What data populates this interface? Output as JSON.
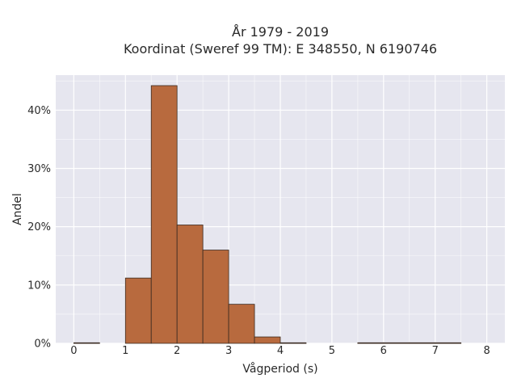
{
  "chart_data": {
    "type": "bar",
    "title": [
      "År 1979 - 2019",
      "Koordinat (Sweref 99 TM): E 348550, N 6190746"
    ],
    "xlabel": "Vågperiod (s)",
    "ylabel": "Andel",
    "xlim": [
      -0.35,
      8.35
    ],
    "ylim": [
      0,
      0.46
    ],
    "xticks": [
      0,
      1,
      2,
      3,
      4,
      5,
      6,
      7,
      8
    ],
    "xtick_labels": [
      "0",
      "1",
      "2",
      "3",
      "4",
      "5",
      "6",
      "7",
      "8"
    ],
    "yticks": [
      0,
      0.1,
      0.2,
      0.3,
      0.4
    ],
    "ytick_labels": [
      "0%",
      "10%",
      "20%",
      "30%",
      "40%"
    ],
    "grid": true,
    "bin_width": 0.5,
    "bins": [
      {
        "x0": 0.0,
        "x1": 0.5,
        "value": 0.001
      },
      {
        "x0": 0.5,
        "x1": 1.0,
        "value": 0.0
      },
      {
        "x0": 1.0,
        "x1": 1.5,
        "value": 0.112
      },
      {
        "x0": 1.5,
        "x1": 2.0,
        "value": 0.442
      },
      {
        "x0": 2.0,
        "x1": 2.5,
        "value": 0.203
      },
      {
        "x0": 2.5,
        "x1": 3.0,
        "value": 0.16
      },
      {
        "x0": 3.0,
        "x1": 3.5,
        "value": 0.067
      },
      {
        "x0": 3.5,
        "x1": 4.0,
        "value": 0.011
      },
      {
        "x0": 4.0,
        "x1": 4.5,
        "value": 0.001
      },
      {
        "x0": 4.5,
        "x1": 5.0,
        "value": 0.0
      },
      {
        "x0": 5.0,
        "x1": 5.5,
        "value": 0.0
      },
      {
        "x0": 5.5,
        "x1": 6.0,
        "value": 0.001
      },
      {
        "x0": 6.0,
        "x1": 6.5,
        "value": 0.001
      },
      {
        "x0": 6.5,
        "x1": 7.0,
        "value": 0.001
      },
      {
        "x0": 7.0,
        "x1": 7.5,
        "value": 0.001
      }
    ],
    "colors": {
      "bar_fill": "#b86a3e",
      "bar_stroke": "#3a2a20",
      "plot_background": "#e6e6ef",
      "grid": "#ffffff"
    }
  }
}
